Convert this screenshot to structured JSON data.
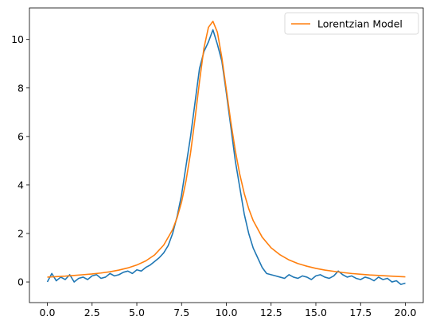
{
  "chart_data": {
    "type": "line",
    "title": "",
    "xlabel": "",
    "ylabel": "",
    "xlim": [
      -1.0,
      21.0
    ],
    "ylim": [
      -0.85,
      11.3
    ],
    "xticks": [
      0.0,
      2.5,
      5.0,
      7.5,
      10.0,
      12.5,
      15.0,
      17.5,
      20.0
    ],
    "xtick_labels": [
      "0.0",
      "2.5",
      "5.0",
      "7.5",
      "10.0",
      "12.5",
      "15.0",
      "17.5",
      "20.0"
    ],
    "yticks": [
      0,
      2,
      4,
      6,
      8,
      10
    ],
    "ytick_labels": [
      "0",
      "2",
      "4",
      "6",
      "8",
      "10"
    ],
    "grid": false,
    "legend_position": "top-right",
    "series": [
      {
        "color": "#1f77b4",
        "x": [
          0.0,
          0.25,
          0.5,
          0.75,
          1.0,
          1.25,
          1.5,
          1.75,
          2.0,
          2.25,
          2.5,
          2.75,
          3.0,
          3.25,
          3.5,
          3.75,
          4.0,
          4.25,
          4.5,
          4.75,
          5.0,
          5.25,
          5.5,
          5.75,
          6.0,
          6.25,
          6.5,
          6.75,
          7.0,
          7.25,
          7.5,
          7.75,
          8.0,
          8.25,
          8.5,
          8.75,
          9.0,
          9.25,
          9.5,
          9.75,
          10.0,
          10.25,
          10.5,
          10.75,
          11.0,
          11.25,
          11.5,
          11.75,
          12.0,
          12.25,
          12.5,
          12.75,
          13.0,
          13.25,
          13.5,
          13.75,
          14.0,
          14.25,
          14.5,
          14.75,
          15.0,
          15.25,
          15.5,
          15.75,
          16.0,
          16.25,
          16.5,
          16.75,
          17.0,
          17.25,
          17.5,
          17.75,
          18.0,
          18.25,
          18.5,
          18.75,
          19.0,
          19.25,
          19.5,
          19.75,
          20.0
        ],
        "values": [
          0.0,
          0.35,
          0.05,
          0.2,
          0.1,
          0.3,
          0.0,
          0.15,
          0.2,
          0.1,
          0.25,
          0.3,
          0.15,
          0.2,
          0.35,
          0.25,
          0.3,
          0.4,
          0.45,
          0.35,
          0.5,
          0.45,
          0.6,
          0.7,
          0.85,
          1.0,
          1.2,
          1.5,
          2.0,
          2.7,
          3.6,
          4.8,
          6.0,
          7.4,
          8.8,
          9.5,
          9.9,
          10.4,
          9.8,
          9.1,
          7.8,
          6.4,
          5.0,
          3.9,
          2.8,
          2.0,
          1.4,
          1.0,
          0.6,
          0.35,
          0.3,
          0.25,
          0.2,
          0.15,
          0.3,
          0.2,
          0.15,
          0.25,
          0.2,
          0.1,
          0.25,
          0.3,
          0.2,
          0.15,
          0.25,
          0.45,
          0.3,
          0.2,
          0.25,
          0.15,
          0.1,
          0.2,
          0.15,
          0.05,
          0.2,
          0.1,
          0.15,
          0.0,
          0.05,
          -0.1,
          -0.05
        ]
      },
      {
        "name": "Lorentzian Model",
        "color": "#ff7f0e",
        "x": [
          0.0,
          0.5,
          1.0,
          1.5,
          2.0,
          2.5,
          3.0,
          3.5,
          4.0,
          4.5,
          5.0,
          5.5,
          6.0,
          6.5,
          7.0,
          7.25,
          7.5,
          7.75,
          8.0,
          8.25,
          8.5,
          8.75,
          9.0,
          9.25,
          9.5,
          9.75,
          10.0,
          10.25,
          10.5,
          10.75,
          11.0,
          11.25,
          11.5,
          12.0,
          12.5,
          13.0,
          13.5,
          14.0,
          14.5,
          15.0,
          15.5,
          16.0,
          16.5,
          17.0,
          17.5,
          18.0,
          18.5,
          19.0,
          19.5,
          20.0
        ],
        "values": [
          0.2,
          0.22,
          0.24,
          0.27,
          0.3,
          0.33,
          0.37,
          0.42,
          0.49,
          0.58,
          0.7,
          0.87,
          1.12,
          1.52,
          2.16,
          2.65,
          3.3,
          4.18,
          5.32,
          6.73,
          8.26,
          9.65,
          10.5,
          10.75,
          10.3,
          9.25,
          7.93,
          6.6,
          5.42,
          4.44,
          3.65,
          3.02,
          2.53,
          1.85,
          1.41,
          1.12,
          0.91,
          0.76,
          0.65,
          0.56,
          0.49,
          0.44,
          0.39,
          0.35,
          0.32,
          0.29,
          0.27,
          0.25,
          0.23,
          0.21
        ]
      }
    ]
  }
}
